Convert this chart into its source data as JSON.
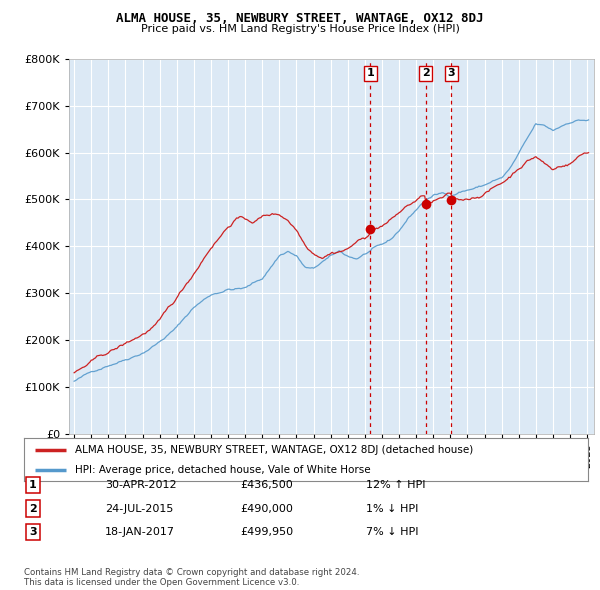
{
  "title1": "ALMA HOUSE, 35, NEWBURY STREET, WANTAGE, OX12 8DJ",
  "title2": "Price paid vs. HM Land Registry's House Price Index (HPI)",
  "legend_red": "ALMA HOUSE, 35, NEWBURY STREET, WANTAGE, OX12 8DJ (detached house)",
  "legend_blue": "HPI: Average price, detached house, Vale of White Horse",
  "transaction_labels": [
    "1",
    "2",
    "3"
  ],
  "transaction_dates_label": [
    "30-APR-2012",
    "24-JUL-2015",
    "18-JAN-2017"
  ],
  "transaction_prices_label": [
    "£436,500",
    "£490,000",
    "£499,950"
  ],
  "transaction_hpi_label": [
    "12% ↑ HPI",
    "1% ↓ HPI",
    "7% ↓ HPI"
  ],
  "transaction_years": [
    2012.33,
    2015.56,
    2017.05
  ],
  "transaction_values": [
    436500,
    490000,
    499950
  ],
  "vline_color": "#cc0000",
  "dot_color": "#cc0000",
  "footer": "Contains HM Land Registry data © Crown copyright and database right 2024.\nThis data is licensed under the Open Government Licence v3.0.",
  "chart_bg_color": "#dce9f5",
  "fig_bg_color": "#ffffff",
  "grid_color": "#ffffff",
  "red_line_color": "#cc2222",
  "blue_line_color": "#5599cc",
  "ylim": [
    0,
    800000
  ],
  "yticks": [
    0,
    100000,
    200000,
    300000,
    400000,
    500000,
    600000,
    700000,
    800000
  ],
  "xlim_start": 1994.7,
  "xlim_end": 2025.4
}
